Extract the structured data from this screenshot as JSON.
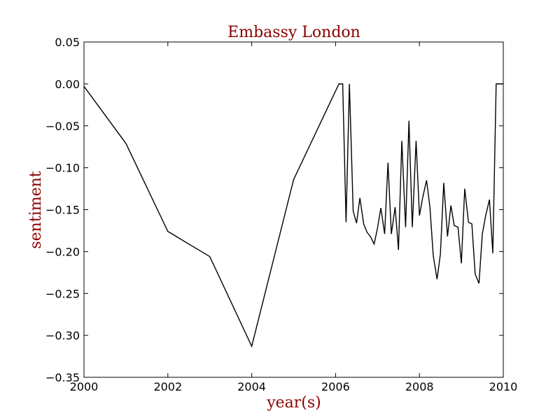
{
  "chart_data": {
    "type": "line",
    "title": "Embassy London",
    "xlabel": "year(s)",
    "ylabel": "sentiment",
    "xlim": [
      2000,
      2010
    ],
    "ylim": [
      -0.35,
      0.05
    ],
    "grid": false,
    "legend": "none",
    "x_ticks": [
      "2000",
      "2002",
      "2004",
      "2006",
      "2008",
      "2010"
    ],
    "y_ticks": [
      "0.05",
      "0.00",
      "−0.05",
      "−0.10",
      "−0.15",
      "−0.20",
      "−0.25",
      "−0.30",
      "−0.35"
    ],
    "series": [
      {
        "color": "#000000",
        "x": [
          2000.0,
          2001.0,
          2002.0,
          2003.0,
          2004.0,
          2005.0,
          2006.08,
          2006.17,
          2006.25,
          2006.33,
          2006.42,
          2006.5,
          2006.58,
          2006.67,
          2006.75,
          2006.83,
          2006.92,
          2007.0,
          2007.08,
          2007.17,
          2007.25,
          2007.33,
          2007.42,
          2007.5,
          2007.58,
          2007.67,
          2007.75,
          2007.83,
          2007.92,
          2008.0,
          2008.08,
          2008.17,
          2008.25,
          2008.33,
          2008.42,
          2008.5,
          2008.58,
          2008.67,
          2008.75,
          2008.83,
          2008.92,
          2009.0,
          2009.08,
          2009.17,
          2009.25,
          2009.33,
          2009.42,
          2009.5,
          2009.58,
          2009.67,
          2009.75,
          2009.83,
          2009.92,
          2010.0
        ],
        "y": [
          -0.003,
          -0.071,
          -0.176,
          -0.206,
          -0.313,
          -0.114,
          0.0,
          0.0,
          -0.165,
          0.0,
          -0.152,
          -0.166,
          -0.136,
          -0.167,
          -0.177,
          -0.182,
          -0.191,
          -0.172,
          -0.148,
          -0.179,
          -0.094,
          -0.179,
          -0.147,
          -0.198,
          -0.068,
          -0.171,
          -0.044,
          -0.171,
          -0.068,
          -0.157,
          -0.135,
          -0.115,
          -0.147,
          -0.205,
          -0.233,
          -0.203,
          -0.118,
          -0.182,
          -0.145,
          -0.169,
          -0.171,
          -0.214,
          -0.125,
          -0.165,
          -0.167,
          -0.227,
          -0.238,
          -0.179,
          -0.157,
          -0.138,
          -0.202,
          0.0,
          0.0,
          0.0
        ]
      }
    ]
  }
}
